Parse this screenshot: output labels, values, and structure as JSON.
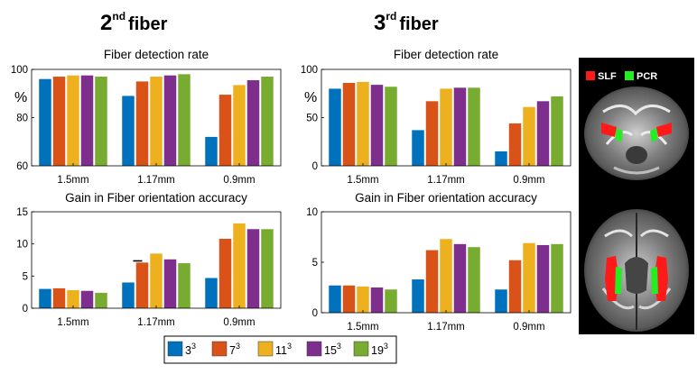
{
  "headings": [
    {
      "base": "2",
      "sup": "nd",
      "word": "fiber"
    },
    {
      "base": "3",
      "sup": "rd",
      "word": "fiber"
    }
  ],
  "colors": [
    "#0072BD",
    "#D95319",
    "#EDB120",
    "#7E2F8E",
    "#77AC30"
  ],
  "legend": [
    {
      "base": "3",
      "sup": "3"
    },
    {
      "base": "7",
      "sup": "3"
    },
    {
      "base": "11",
      "sup": "3"
    },
    {
      "base": "15",
      "sup": "3"
    },
    {
      "base": "19",
      "sup": "3"
    }
  ],
  "brain": {
    "labels": [
      "SLF",
      "PCR"
    ],
    "colors": [
      "#ff1a1a",
      "#22ee22"
    ]
  },
  "chart_data": [
    {
      "type": "bar",
      "id": "c2a",
      "title": "Fiber detection rate",
      "ylabel": "%",
      "ylim": [
        60,
        100
      ],
      "yticks": [
        "60",
        "80",
        "100"
      ],
      "categories": [
        "1.5mm",
        "1.17mm",
        "0.9mm"
      ],
      "series": [
        {
          "name": "3^3",
          "values": [
            96,
            89,
            72
          ]
        },
        {
          "name": "7^3",
          "values": [
            97,
            95,
            89.5
          ]
        },
        {
          "name": "11^3",
          "values": [
            97.5,
            97,
            93.5
          ]
        },
        {
          "name": "15^3",
          "values": [
            97.5,
            97.5,
            95.5
          ]
        },
        {
          "name": "19^3",
          "values": [
            97,
            98,
            97
          ]
        }
      ]
    },
    {
      "type": "bar",
      "id": "c2b",
      "title": "Gain in Fiber orientation accuracy",
      "ylabel": "",
      "ylim": [
        0,
        15
      ],
      "yticks": [
        "0",
        "5",
        "10",
        "15"
      ],
      "categories": [
        "1.5mm",
        "1.17mm",
        "0.9mm"
      ],
      "series": [
        {
          "name": "3^3",
          "values": [
            3.0,
            4.0,
            4.7
          ]
        },
        {
          "name": "7^3",
          "values": [
            3.1,
            7.1,
            10.8
          ]
        },
        {
          "name": "11^3",
          "values": [
            2.8,
            8.5,
            13.2
          ]
        },
        {
          "name": "15^3",
          "values": [
            2.7,
            7.6,
            12.3
          ]
        },
        {
          "name": "19^3",
          "values": [
            2.4,
            7.0,
            12.3
          ]
        }
      ]
    },
    {
      "type": "bar",
      "id": "c3a",
      "title": "Fiber detection rate",
      "ylabel": "%",
      "ylim": [
        0,
        100
      ],
      "yticks": [
        "0",
        "50",
        "100"
      ],
      "categories": [
        "1.5mm",
        "1.17mm",
        "0.9mm"
      ],
      "series": [
        {
          "name": "3^3",
          "values": [
            80,
            37,
            15
          ]
        },
        {
          "name": "7^3",
          "values": [
            86,
            67,
            44
          ]
        },
        {
          "name": "11^3",
          "values": [
            87,
            80,
            61
          ]
        },
        {
          "name": "15^3",
          "values": [
            84,
            81,
            67
          ]
        },
        {
          "name": "19^3",
          "values": [
            82,
            81,
            72
          ]
        }
      ]
    },
    {
      "type": "bar",
      "id": "c3b",
      "title": "Gain in Fiber orientation accuracy",
      "ylabel": "",
      "ylim": [
        0,
        10
      ],
      "yticks": [
        "0",
        "5",
        "10"
      ],
      "categories": [
        "1.5mm",
        "1.17mm",
        "0.9mm"
      ],
      "series": [
        {
          "name": "3^3",
          "values": [
            2.7,
            3.3,
            2.3
          ]
        },
        {
          "name": "7^3",
          "values": [
            2.7,
            6.2,
            5.2
          ]
        },
        {
          "name": "11^3",
          "values": [
            2.6,
            7.3,
            6.9
          ]
        },
        {
          "name": "15^3",
          "values": [
            2.5,
            6.8,
            6.7
          ]
        },
        {
          "name": "19^3",
          "values": [
            2.3,
            6.5,
            6.8
          ]
        }
      ]
    }
  ]
}
